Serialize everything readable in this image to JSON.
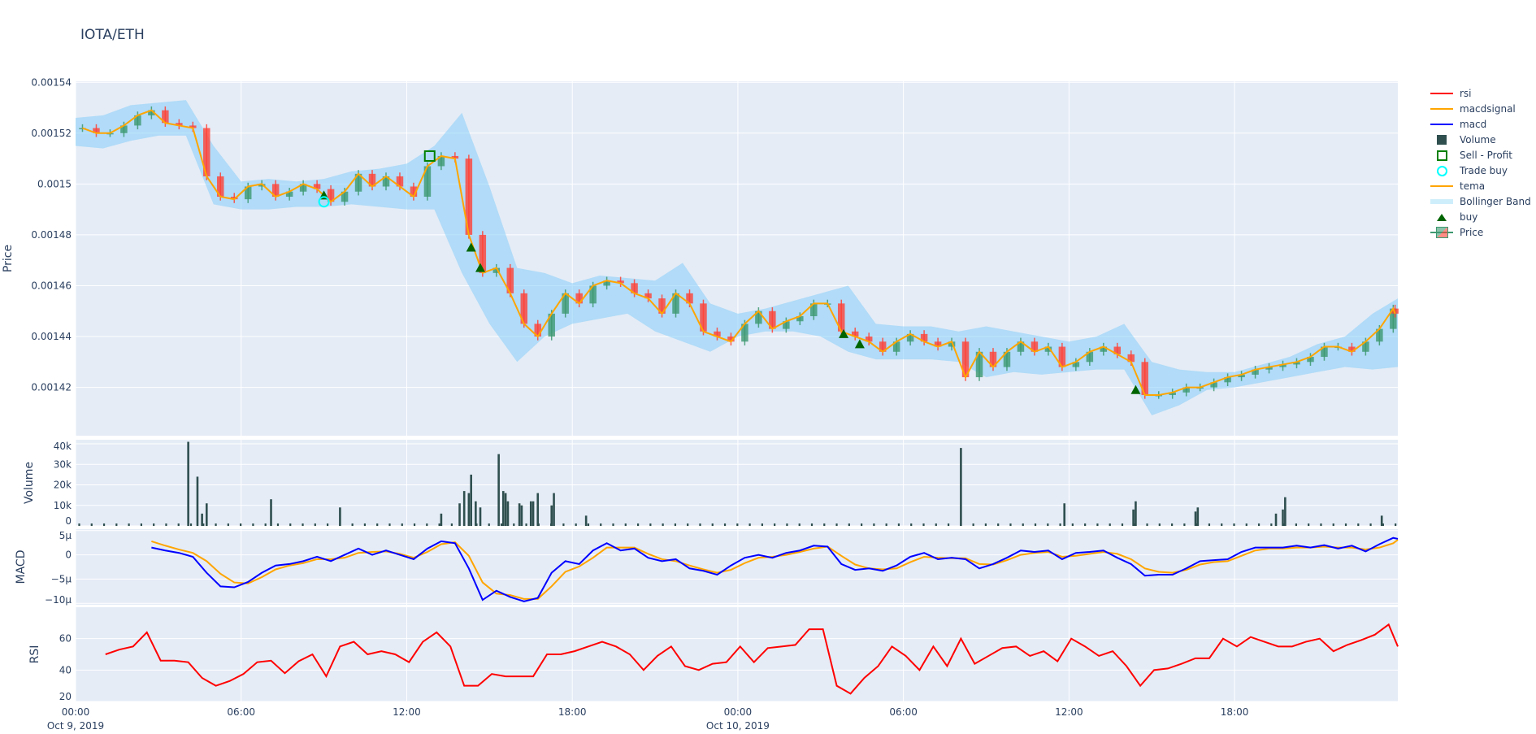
{
  "title": "IOTA/ETH",
  "legend": [
    {
      "name": "rsi",
      "kind": "line",
      "color": "#ff0000"
    },
    {
      "name": "macdsignal",
      "kind": "line",
      "color": "#ffa500"
    },
    {
      "name": "macd",
      "kind": "line",
      "color": "#0000ff"
    },
    {
      "name": "Volume",
      "kind": "square",
      "color": "#2f4f4f"
    },
    {
      "name": "Sell - Profit",
      "kind": "open-square",
      "color": "#008000"
    },
    {
      "name": "Trade buy",
      "kind": "open-circle",
      "color": "#00ffff"
    },
    {
      "name": "tema",
      "kind": "line",
      "color": "#ffa500"
    },
    {
      "name": "Bollinger Band",
      "kind": "band",
      "color": "#cfeefb"
    },
    {
      "name": "buy",
      "kind": "triangle",
      "color": "#006400"
    },
    {
      "name": "Price",
      "kind": "candle",
      "color": "#3D9970"
    }
  ],
  "chart_data": {
    "type": "candlestick",
    "xaxis": {
      "range": [
        "2019-10-09 00:00",
        "2019-10-10 23:55"
      ],
      "ticks": [
        {
          "label": "00:00",
          "sub": "Oct 9, 2019",
          "hour": 0
        },
        {
          "label": "06:00",
          "sub": "",
          "hour": 6
        },
        {
          "label": "12:00",
          "sub": "",
          "hour": 12
        },
        {
          "label": "18:00",
          "sub": "",
          "hour": 18
        },
        {
          "label": "00:00",
          "sub": "Oct 10, 2019",
          "hour": 24
        },
        {
          "label": "06:00",
          "sub": "",
          "hour": 30
        },
        {
          "label": "12:00",
          "sub": "",
          "hour": 36
        },
        {
          "label": "18:00",
          "sub": "",
          "hour": 42
        }
      ]
    },
    "price": {
      "ylabel": "Price",
      "ylim": [
        0.001401,
        0.0015404
      ],
      "ticks": [
        "0.00142",
        "0.00144",
        "0.00146",
        "0.00148",
        "0.0015",
        "0.00152",
        "0.00154"
      ],
      "start": "2019-10-09 00:00",
      "interval_minutes": 30,
      "close": [
        0.001522,
        0.00152,
        0.00152,
        0.001523,
        0.001527,
        0.001529,
        0.001524,
        0.001523,
        0.001522,
        0.001503,
        0.001495,
        0.001494,
        0.001499,
        0.0015,
        0.001495,
        0.001497,
        0.0015,
        0.001498,
        0.001493,
        0.001497,
        0.001504,
        0.001499,
        0.001503,
        0.001499,
        0.001495,
        0.001507,
        0.001511,
        0.00151,
        0.00148,
        0.001465,
        0.001467,
        0.001457,
        0.001445,
        0.00144,
        0.001449,
        0.001457,
        0.001453,
        0.00146,
        0.001462,
        0.001461,
        0.001457,
        0.001455,
        0.001449,
        0.001457,
        0.001453,
        0.001442,
        0.00144,
        0.001438,
        0.001445,
        0.00145,
        0.001443,
        0.001446,
        0.001448,
        0.001453,
        0.001453,
        0.001442,
        0.00144,
        0.001438,
        0.001434,
        0.001438,
        0.001441,
        0.001438,
        0.001436,
        0.001438,
        0.001424,
        0.001434,
        0.001428,
        0.001434,
        0.001438,
        0.001434,
        0.001436,
        0.001428,
        0.00143,
        0.001434,
        0.001436,
        0.001433,
        0.00143,
        0.001417,
        0.001417,
        0.001418,
        0.00142,
        0.00142,
        0.001422,
        0.001424,
        0.001425,
        0.001427,
        0.001428,
        0.001429,
        0.00143,
        0.001432,
        0.001436,
        0.001436,
        0.001434,
        0.001438,
        0.001443,
        0.001451,
        0.001449
      ],
      "bollinger_interval_minutes": 60,
      "bb_upper": [
        0.001526,
        0.001527,
        0.001531,
        0.001532,
        0.001533,
        0.001515,
        0.001501,
        0.001502,
        0.001501,
        0.001502,
        0.001505,
        0.001506,
        0.001508,
        0.001515,
        0.001528,
        0.001499,
        0.001467,
        0.001465,
        0.001461,
        0.001464,
        0.001463,
        0.001462,
        0.001469,
        0.001453,
        0.001449,
        0.001451,
        0.001454,
        0.001457,
        0.00146,
        0.001445,
        0.001444,
        0.001444,
        0.001442,
        0.001444,
        0.001442,
        0.00144,
        0.001438,
        0.00144,
        0.001445,
        0.00143,
        0.001427,
        0.001426,
        0.001426,
        0.001429,
        0.001432,
        0.001437,
        0.00144,
        0.001449,
        0.001455
      ],
      "bb_lower": [
        0.001515,
        0.001514,
        0.001517,
        0.001519,
        0.001519,
        0.001492,
        0.00149,
        0.00149,
        0.001491,
        0.001491,
        0.001492,
        0.001491,
        0.00149,
        0.00149,
        0.001465,
        0.001445,
        0.00143,
        0.00144,
        0.001445,
        0.001447,
        0.001449,
        0.001442,
        0.001438,
        0.001434,
        0.00144,
        0.001442,
        0.001442,
        0.00144,
        0.001434,
        0.001431,
        0.001431,
        0.001431,
        0.00143,
        0.001424,
        0.001426,
        0.001425,
        0.001426,
        0.001427,
        0.001427,
        0.001409,
        0.001413,
        0.001419,
        0.00142,
        0.001422,
        0.001424,
        0.001426,
        0.001428,
        0.001427,
        0.001428
      ],
      "buy": [
        {
          "t": "2019-10-09 09:00",
          "y": 0.0014955
        },
        {
          "t": "2019-10-09 14:20",
          "y": 0.001475
        },
        {
          "t": "2019-10-09 14:40",
          "y": 0.001467
        },
        {
          "t": "2019-10-10 03:50",
          "y": 0.001441
        },
        {
          "t": "2019-10-10 04:25",
          "y": 0.001437
        },
        {
          "t": "2019-10-10 14:25",
          "y": 0.001419
        }
      ],
      "trade_buy": [
        {
          "t": "2019-10-09 09:00",
          "y": 0.001493
        }
      ],
      "sell_profit": [
        {
          "t": "2019-10-09 12:50",
          "y": 0.001511
        }
      ]
    },
    "volume": {
      "ylabel": "Volume",
      "ylim": [
        0,
        42000
      ],
      "ticks": [
        {
          "v": 0,
          "label": "0"
        },
        {
          "v": 10000,
          "label": "10k"
        },
        {
          "v": 20000,
          "label": "20k"
        },
        {
          "v": 30000,
          "label": "30k"
        },
        {
          "v": 40000,
          "label": "40k"
        }
      ],
      "bars": [
        [
          "2019-10-09 04:05",
          41000
        ],
        [
          "2019-10-09 04:25",
          24000
        ],
        [
          "2019-10-09 04:35",
          6000
        ],
        [
          "2019-10-09 04:45",
          11000
        ],
        [
          "2019-10-09 07:05",
          13000
        ],
        [
          "2019-10-09 09:35",
          9000
        ],
        [
          "2019-10-09 13:15",
          6000
        ],
        [
          "2019-10-09 13:55",
          11000
        ],
        [
          "2019-10-09 14:05",
          17000
        ],
        [
          "2019-10-09 14:15",
          16000
        ],
        [
          "2019-10-09 14:20",
          25000
        ],
        [
          "2019-10-09 14:30",
          12000
        ],
        [
          "2019-10-09 14:40",
          9000
        ],
        [
          "2019-10-09 15:20",
          35000
        ],
        [
          "2019-10-09 15:30",
          17000
        ],
        [
          "2019-10-09 15:35",
          16000
        ],
        [
          "2019-10-09 15:40",
          12000
        ],
        [
          "2019-10-09 16:05",
          11000
        ],
        [
          "2019-10-09 16:10",
          10000
        ],
        [
          "2019-10-09 16:30",
          12000
        ],
        [
          "2019-10-09 16:35",
          12000
        ],
        [
          "2019-10-09 16:45",
          16000
        ],
        [
          "2019-10-09 17:15",
          10000
        ],
        [
          "2019-10-09 17:20",
          16000
        ],
        [
          "2019-10-09 18:30",
          5000
        ],
        [
          "2019-10-10 08:05",
          38000
        ],
        [
          "2019-10-10 11:50",
          11000
        ],
        [
          "2019-10-10 14:20",
          8000
        ],
        [
          "2019-10-10 14:25",
          12000
        ],
        [
          "2019-10-10 16:35",
          7000
        ],
        [
          "2019-10-10 16:40",
          9000
        ],
        [
          "2019-10-10 19:30",
          6000
        ],
        [
          "2019-10-10 19:45",
          8000
        ],
        [
          "2019-10-10 19:50",
          14000
        ],
        [
          "2019-10-10 23:20",
          5000
        ]
      ]
    },
    "macd": {
      "ylabel": "MACD",
      "ylim": [
        -1.03e-05,
        5.3e-06
      ],
      "ticks": [
        {
          "v": 5e-06,
          "label": "5μ"
        },
        {
          "v": 0,
          "label": "0"
        },
        {
          "v": -5e-06,
          "label": "−5μ"
        },
        {
          "v": -1e-05,
          "label": "−10μ"
        }
      ],
      "start": "2019-10-09 02:45",
      "interval_minutes": 30,
      "macd": [
        1.5,
        0.9,
        0.4,
        -0.4,
        -3.7,
        -6.5,
        -6.7,
        -5.6,
        -3.7,
        -2.2,
        -1.9,
        -1.3,
        -0.4,
        -1.3,
        0,
        1.3,
        0,
        0.9,
        0,
        -0.9,
        1.3,
        2.8,
        2.4,
        -2.8,
        -9.3,
        -7.4,
        -8.7,
        -9.6,
        -8.9,
        -3.7,
        -1.3,
        -1.9,
        0.9,
        2.4,
        0.9,
        1.3,
        -0.6,
        -1.3,
        -0.9,
        -2.8,
        -3.3,
        -4.1,
        -2.2,
        -0.6,
        0,
        -0.6,
        0.4,
        0.9,
        1.9,
        1.7,
        -1.9,
        -3.1,
        -2.8,
        -3.3,
        -2.2,
        -0.4,
        0.4,
        -0.9,
        -0.6,
        -0.9,
        -2.8,
        -1.9,
        -0.6,
        0.9,
        0.6,
        0.9,
        -0.9,
        0.4,
        0.6,
        0.9,
        -0.6,
        -1.9,
        -4.3,
        -4.1,
        -4.1,
        -2.8,
        -1.3,
        -1.1,
        -0.9,
        0.6,
        1.5,
        1.5,
        1.5,
        1.9,
        1.5,
        2.0,
        1.3,
        1.9,
        0.7,
        2.2,
        3.5,
        3.3
      ],
      "macdsignal": [
        2.8,
        1.9,
        1.1,
        0.4,
        -1.3,
        -3.9,
        -5.7,
        -5.9,
        -4.6,
        -3.0,
        -2.2,
        -1.7,
        -0.9,
        -0.9,
        -0.6,
        0.4,
        0.6,
        0.7,
        0.2,
        -0.6,
        0.6,
        2.2,
        2.6,
        -0.2,
        -5.7,
        -8.0,
        -8.3,
        -9.1,
        -9.1,
        -6.5,
        -3.5,
        -2.4,
        -0.6,
        1.5,
        1.5,
        1.5,
        0.2,
        -0.9,
        -1.3,
        -2.2,
        -3.0,
        -3.7,
        -3.1,
        -1.7,
        -0.6,
        -0.4,
        0,
        0.6,
        1.3,
        1.7,
        -0.2,
        -2.0,
        -2.8,
        -3.0,
        -2.8,
        -1.5,
        -0.4,
        -0.6,
        -0.7,
        -0.7,
        -1.9,
        -2.0,
        -1.1,
        0,
        0.4,
        0.6,
        -0.4,
        -0.2,
        0.2,
        0.6,
        0.2,
        -0.9,
        -2.8,
        -3.5,
        -3.7,
        -3.1,
        -2.0,
        -1.5,
        -1.3,
        -0.2,
        0.9,
        1.3,
        1.3,
        1.5,
        1.5,
        1.7,
        1.5,
        1.5,
        1.1,
        1.5,
        2.4,
        3.1
      ],
      "unit": "μ"
    },
    "rsi": {
      "ylabel": "RSI",
      "ylim": [
        20,
        80
      ],
      "ticks": [
        {
          "v": 20,
          "label": "20"
        },
        {
          "v": 40,
          "label": "40"
        },
        {
          "v": 60,
          "label": "60"
        }
      ],
      "start": "2019-10-09 01:05",
      "interval_minutes": 30,
      "values": [
        50,
        53,
        55,
        64,
        46,
        46,
        45,
        35,
        30,
        33,
        37.5,
        45,
        46,
        38,
        45.6,
        50,
        36,
        55,
        58,
        50,
        52,
        50,
        45,
        58,
        64,
        55,
        30,
        30,
        37.5,
        36,
        36,
        36,
        50,
        50,
        52,
        55,
        58,
        55,
        50,
        40,
        49,
        55,
        42.5,
        40,
        44,
        45,
        55,
        45,
        54,
        55,
        56,
        66,
        66,
        30,
        25,
        35,
        42.5,
        55,
        49,
        40,
        55,
        42.5,
        60,
        44,
        49,
        54,
        55,
        49,
        52,
        45.6,
        60,
        55,
        49,
        52,
        42.5,
        30,
        40,
        41,
        44,
        47.5,
        47.5,
        60,
        55,
        61,
        58,
        55,
        55,
        58,
        60,
        52,
        56,
        59,
        62.5,
        69,
        55
      ]
    }
  }
}
